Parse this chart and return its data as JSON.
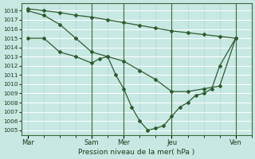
{
  "xlabel": "Pression niveau de la mer( hPa )",
  "bg_color": "#c8e8e4",
  "line_color": "#2d5c2d",
  "grid_major_color": "#ffffff",
  "grid_minor_color": "#a8ccc8",
  "ylim": [
    1004.5,
    1018.8
  ],
  "yticks": [
    1005,
    1006,
    1007,
    1008,
    1009,
    1010,
    1011,
    1012,
    1013,
    1014,
    1015,
    1016,
    1017,
    1018
  ],
  "xtick_labels": [
    "Mar",
    "Sam",
    "Mer",
    "Jeu",
    "Ven"
  ],
  "xtick_positions": [
    0,
    4,
    6,
    9,
    13
  ],
  "vline_positions": [
    4,
    6,
    9,
    13
  ],
  "xlim": [
    -0.4,
    14.0
  ],
  "line_flat": {
    "x": [
      0,
      1,
      2,
      3,
      4,
      5,
      6,
      7,
      8,
      9,
      10,
      11,
      12,
      13
    ],
    "y": [
      1018.2,
      1018.0,
      1017.8,
      1017.5,
      1017.3,
      1017.0,
      1016.7,
      1016.4,
      1016.1,
      1015.8,
      1015.6,
      1015.4,
      1015.2,
      1015.0
    ]
  },
  "line_mid": {
    "x": [
      0,
      1,
      2,
      3,
      4,
      5,
      6,
      7,
      8,
      9,
      10,
      11,
      12,
      13
    ],
    "y": [
      1018.0,
      1017.5,
      1016.5,
      1015.0,
      1013.5,
      1013.0,
      1012.5,
      1011.5,
      1010.5,
      1009.2,
      1009.2,
      1009.5,
      1009.8,
      1015.0
    ]
  },
  "line_low": {
    "x": [
      0,
      1,
      2,
      3,
      4,
      4.5,
      5,
      5.5,
      6,
      6.5,
      7,
      7.5,
      8,
      8.5,
      9,
      9.5,
      10,
      10.5,
      11,
      11.5,
      12,
      13
    ],
    "y": [
      1015.0,
      1015.0,
      1013.5,
      1013.0,
      1012.3,
      1012.8,
      1013.0,
      1011.0,
      1009.5,
      1007.5,
      1006.0,
      1005.0,
      1005.2,
      1005.5,
      1006.5,
      1007.5,
      1008.0,
      1008.8,
      1009.0,
      1009.5,
      1012.0,
      1015.0
    ]
  },
  "figsize": [
    3.2,
    2.0
  ],
  "dpi": 100
}
